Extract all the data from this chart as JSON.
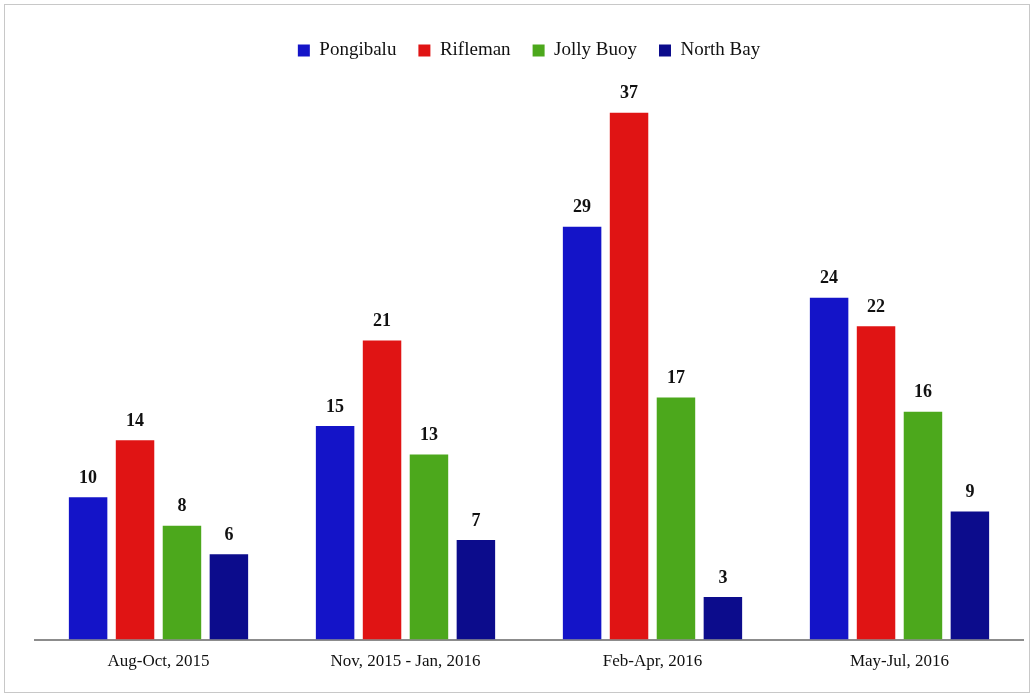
{
  "chart_data": {
    "type": "bar",
    "categories": [
      "Aug-Oct, 2015",
      "Nov, 2015 - Jan, 2016",
      "Feb-Apr, 2016",
      "May-Jul, 2016"
    ],
    "series": [
      {
        "name": "Pongibalu",
        "color": "#1414c8",
        "values": [
          10,
          15,
          29,
          24
        ]
      },
      {
        "name": "Rifleman",
        "color": "#e01414",
        "values": [
          14,
          21,
          37,
          22
        ]
      },
      {
        "name": "Jolly Buoy",
        "color": "#4ca81c",
        "values": [
          8,
          13,
          17,
          16
        ]
      },
      {
        "name": "North Bay",
        "color": "#0c0c8c",
        "values": [
          6,
          7,
          3,
          9
        ]
      }
    ],
    "data_labels": true,
    "legend": "top",
    "grid": false,
    "tick_labels": "x"
  }
}
